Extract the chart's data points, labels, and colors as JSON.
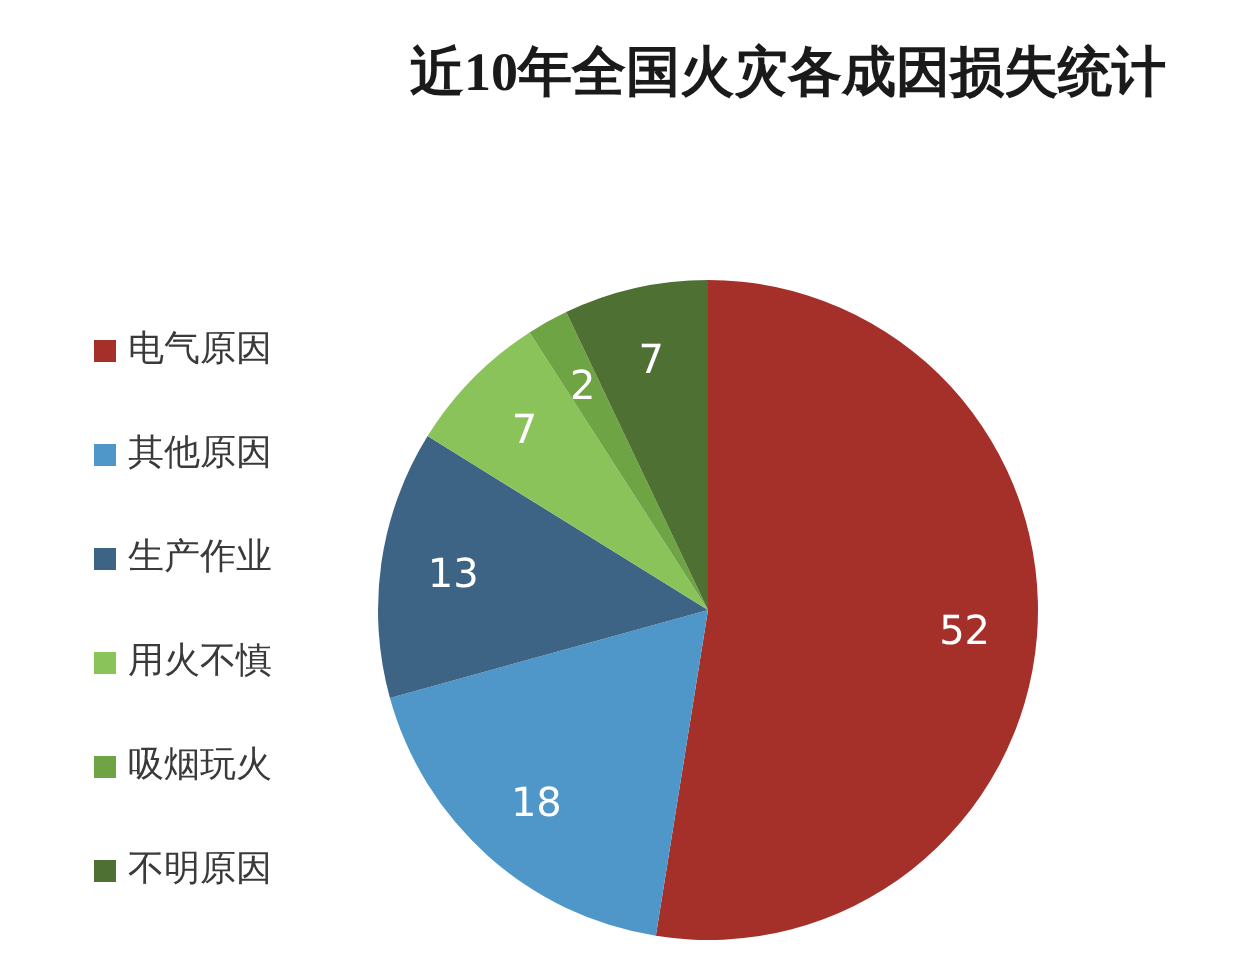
{
  "chart_data": {
    "type": "pie",
    "title": "近10年全国火灾各成因损失统计",
    "categories": [
      "电气原因",
      "其他原因",
      "生产作业",
      "用火不慎",
      "吸烟玩火",
      "不明原因"
    ],
    "values": [
      52,
      18,
      13,
      7,
      2,
      7
    ],
    "colors": [
      "#a5302a",
      "#4f97c9",
      "#3e6485",
      "#8bc35b",
      "#6fa444",
      "#4f7033"
    ],
    "data_labels": true,
    "legend": "left"
  }
}
